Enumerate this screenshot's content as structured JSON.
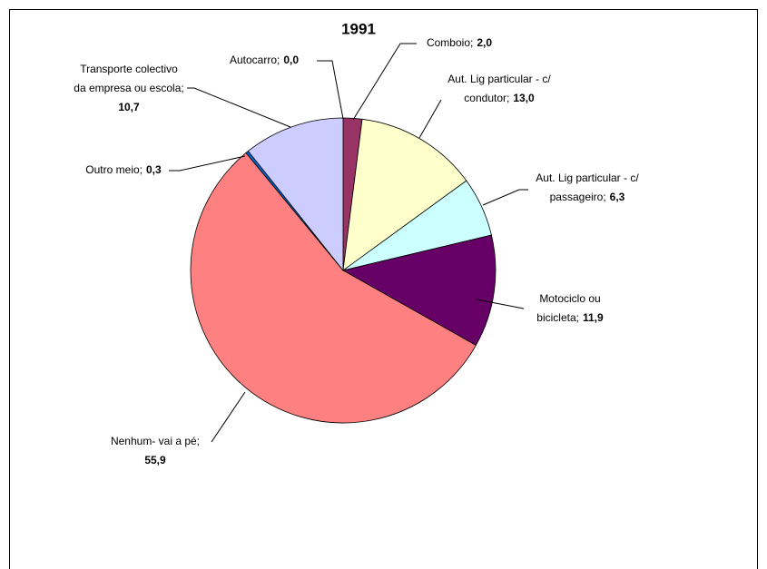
{
  "chart_data": {
    "type": "pie",
    "title": "1991",
    "categories": [
      "Autocarro;",
      "Comboio;",
      "Aut. Lig particular - c/ condutor;",
      "Aut. Lig particular - c/ passageiro;",
      "Motociclo ou bicicleta;",
      "Nenhum- vai a pé;",
      "Outro meio;",
      "Transporte colectivo da empresa ou escola;"
    ],
    "values": [
      0.0,
      2.0,
      13.0,
      6.3,
      11.9,
      55.9,
      0.3,
      10.7
    ],
    "value_labels": [
      "0,0",
      "2,0",
      "13,0",
      "6,3",
      "11,9",
      "55,9",
      "0,3",
      "10,7"
    ],
    "colors": [
      "#333399",
      "#993366",
      "#FFFFCC",
      "#CCFFFF",
      "#660066",
      "#FF8080",
      "#0066CC",
      "#CCCCFF"
    ]
  }
}
